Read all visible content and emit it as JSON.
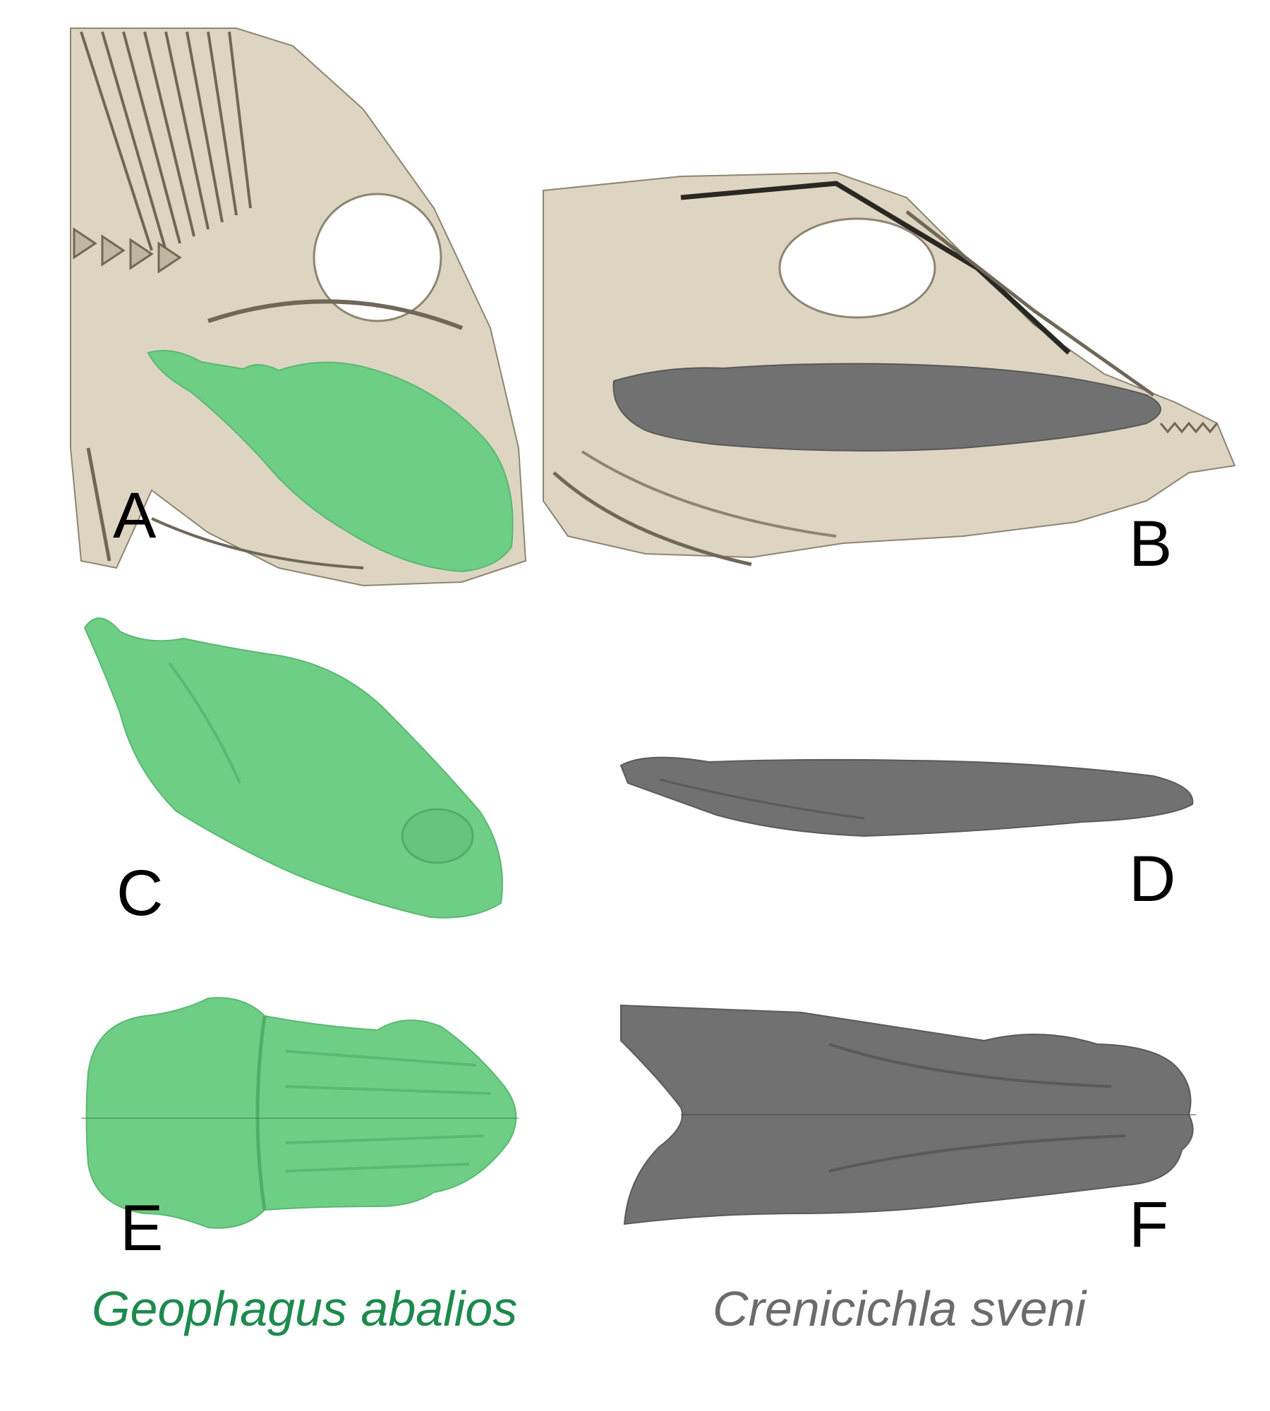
{
  "panels": {
    "a": {
      "label": "A"
    },
    "b": {
      "label": "B"
    },
    "c": {
      "label": "C"
    },
    "d": {
      "label": "D"
    },
    "e": {
      "label": "E"
    },
    "f": {
      "label": "F"
    }
  },
  "species": {
    "left": {
      "name": "Geophagus abalios",
      "color": "#1e8a4e"
    },
    "right": {
      "name": "Crenicichla sveni",
      "color": "#6b6b6b"
    }
  },
  "colors": {
    "bone": "#ddd5c2",
    "bone_shadow": "#6f6858",
    "green_model": "#6fce86",
    "gray_model": "#717171"
  }
}
